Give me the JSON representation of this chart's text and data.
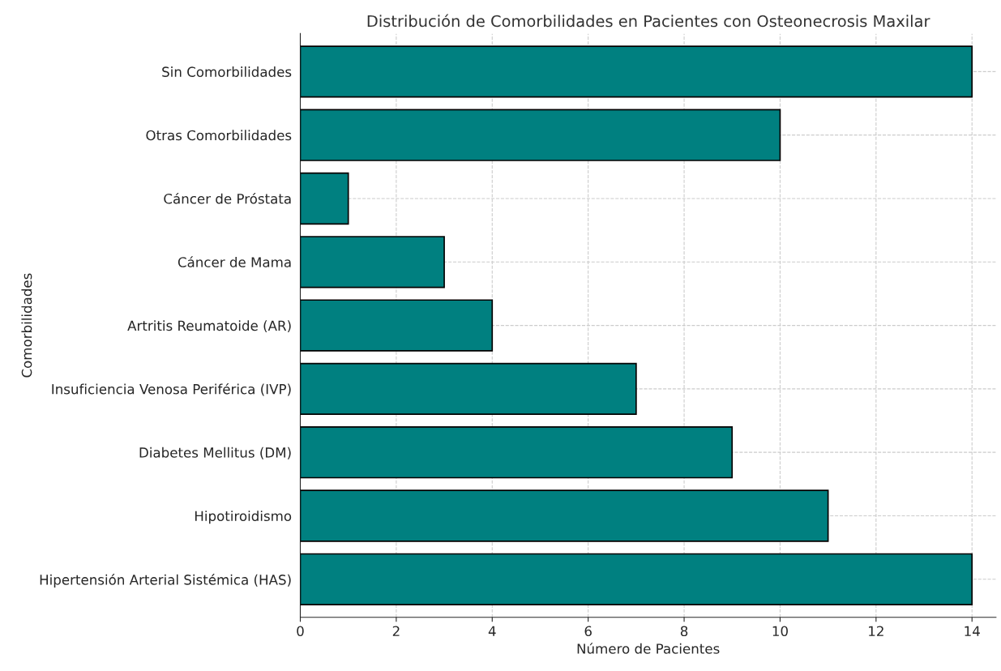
{
  "chart_data": {
    "type": "bar",
    "orientation": "horizontal",
    "title": "Distribución de Comorbilidades en Pacientes con Osteonecrosis Maxilar",
    "xlabel": "Número de Pacientes",
    "ylabel": "Comorbilidades",
    "categories": [
      "Sin Comorbilidades",
      "Otras Comorbilidades",
      "Cáncer de Próstata",
      "Cáncer de Mama",
      "Artritis Reumatoide (AR)",
      "Insuficiencia Venosa Periférica (IVP)",
      "Diabetes Mellitus (DM)",
      "Hipotiroidismo",
      "Hipertensión Arterial Sistémica (HAS)"
    ],
    "values": [
      14,
      10,
      1,
      3,
      4,
      7,
      9,
      11,
      14
    ],
    "color": "#008080",
    "xlim": [
      0,
      14.5
    ],
    "xticks": [
      0,
      2,
      4,
      6,
      8,
      10,
      12,
      14
    ],
    "grid": true,
    "line_style": "dashed"
  }
}
